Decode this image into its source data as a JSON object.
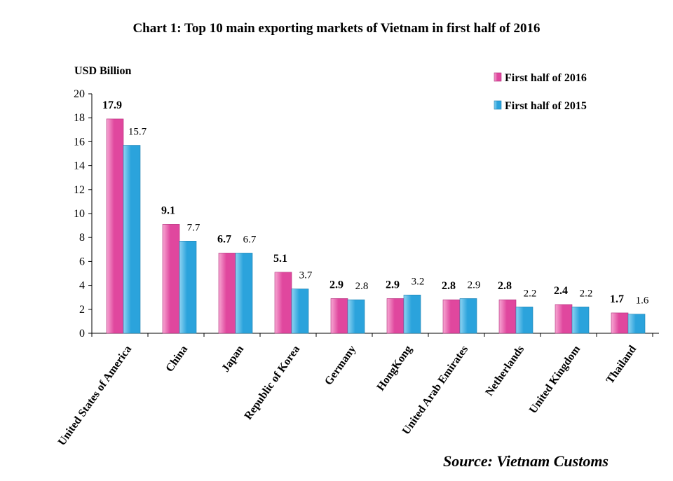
{
  "chart_data": {
    "type": "bar",
    "title": "Chart 1: Top 10 main exporting markets of Vietnam in first half of 2016",
    "ylabel": "USD Billion",
    "xlabel": "",
    "ylim": [
      0,
      20
    ],
    "yticks": [
      "0",
      "2",
      "4",
      "6",
      "8",
      "10",
      "12",
      "14",
      "16",
      "18",
      "20"
    ],
    "categories": [
      "United States of America",
      "China",
      "Japan",
      "Republic of Korea",
      "Germany",
      "HongKong",
      "United Arab Emirates",
      "Netherlands",
      "United Kingdom",
      "Thailand"
    ],
    "series": [
      {
        "name": "First half of 2016",
        "color": "#e0479e",
        "values": [
          17.9,
          9.1,
          6.7,
          5.1,
          2.9,
          2.9,
          2.8,
          2.8,
          2.4,
          1.7
        ],
        "labels": [
          "17.9",
          "9.1",
          "6.7",
          "5.1",
          "2.9",
          "2.9",
          "2.8",
          "2.8",
          "2.4",
          "1.7"
        ]
      },
      {
        "name": "First half of 2015",
        "color": "#2ba3dc",
        "values": [
          15.7,
          7.7,
          6.7,
          3.7,
          2.8,
          3.2,
          2.9,
          2.2,
          2.2,
          1.6
        ],
        "labels": [
          "15.7",
          "7.7",
          "6.7",
          "3.7",
          "2.8",
          "3.2",
          "2.9",
          "2.2",
          "2.2",
          "1.6"
        ]
      }
    ],
    "legend_position": "top-right",
    "grid": false,
    "source": "Source: Vietnam Customs"
  }
}
